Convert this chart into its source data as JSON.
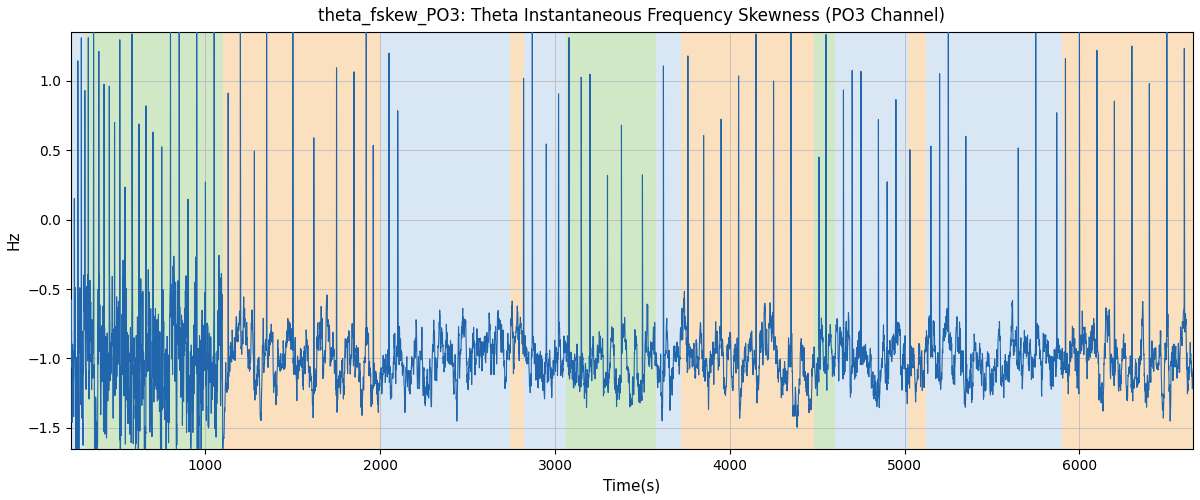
{
  "title": "theta_fskew_PO3: Theta Instantaneous Frequency Skewness (PO3 Channel)",
  "xlabel": "Time(s)",
  "ylabel": "Hz",
  "xlim": [
    230,
    6650
  ],
  "ylim": [
    -1.65,
    1.35
  ],
  "line_color": "#2166ac",
  "line_width": 0.8,
  "grid": true,
  "grid_color": "#bbbbbb",
  "background_bands": [
    {
      "xmin": 230,
      "xmax": 310,
      "color": "#b8d4ea",
      "alpha": 0.55
    },
    {
      "xmin": 310,
      "xmax": 1100,
      "color": "#98cc80",
      "alpha": 0.45
    },
    {
      "xmin": 1100,
      "xmax": 2000,
      "color": "#f7c889",
      "alpha": 0.55
    },
    {
      "xmin": 2000,
      "xmax": 2740,
      "color": "#b8d4ea",
      "alpha": 0.55
    },
    {
      "xmin": 2740,
      "xmax": 2820,
      "color": "#f7c889",
      "alpha": 0.55
    },
    {
      "xmin": 2820,
      "xmax": 3060,
      "color": "#b8d4ea",
      "alpha": 0.55
    },
    {
      "xmin": 3060,
      "xmax": 3580,
      "color": "#98cc80",
      "alpha": 0.45
    },
    {
      "xmin": 3580,
      "xmax": 3720,
      "color": "#b8d4ea",
      "alpha": 0.55
    },
    {
      "xmin": 3720,
      "xmax": 4480,
      "color": "#f7c889",
      "alpha": 0.55
    },
    {
      "xmin": 4480,
      "xmax": 4600,
      "color": "#98cc80",
      "alpha": 0.45
    },
    {
      "xmin": 4600,
      "xmax": 5020,
      "color": "#b8d4ea",
      "alpha": 0.55
    },
    {
      "xmin": 5020,
      "xmax": 5120,
      "color": "#f7c889",
      "alpha": 0.55
    },
    {
      "xmin": 5120,
      "xmax": 5820,
      "color": "#b8d4ea",
      "alpha": 0.55
    },
    {
      "xmin": 5820,
      "xmax": 5900,
      "color": "#b8d4ea",
      "alpha": 0.55
    },
    {
      "xmin": 5900,
      "xmax": 6650,
      "color": "#f7c889",
      "alpha": 0.55
    }
  ],
  "t_start": 230,
  "t_end": 6650,
  "n_points": 6421,
  "seed": 7
}
